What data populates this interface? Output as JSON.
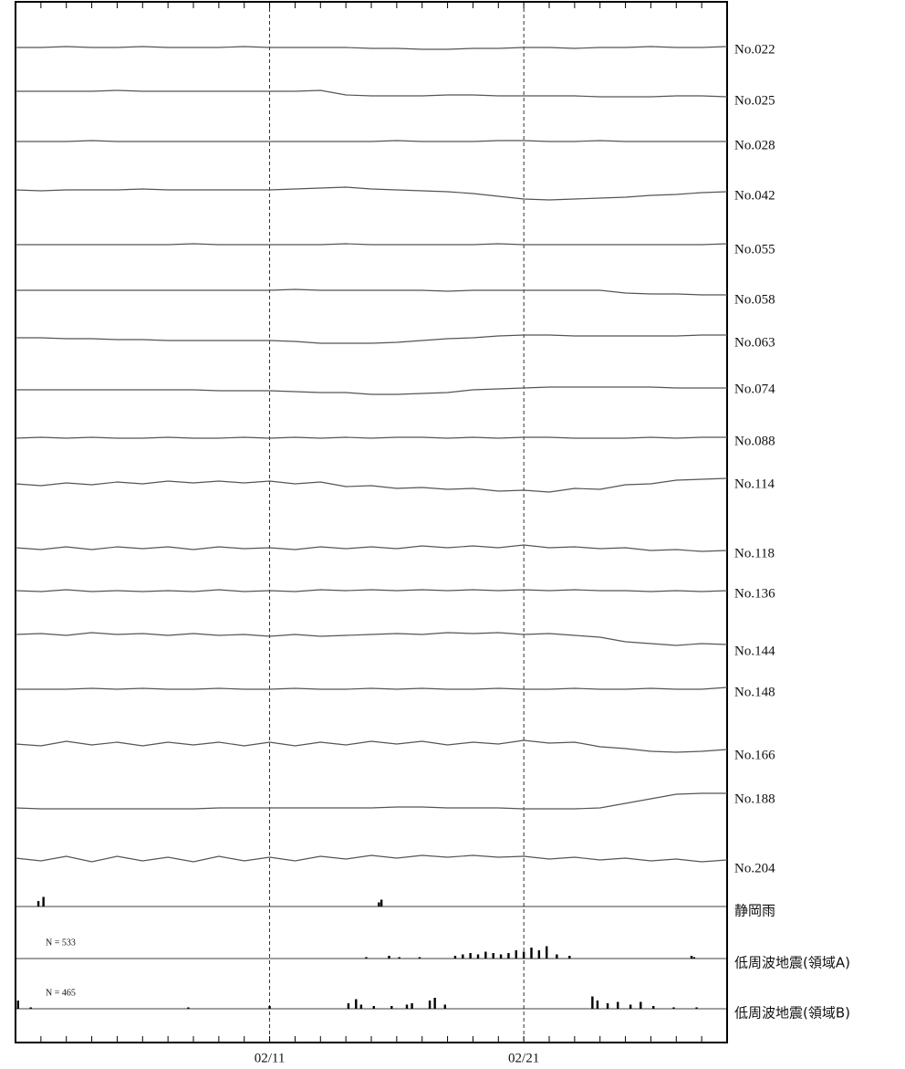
{
  "chart_data": {
    "type": "strip",
    "xlim": [
      0,
      28
    ],
    "xticks": [
      {
        "value": 10,
        "label": "02/11"
      },
      {
        "value": 20,
        "label": "02/21"
      }
    ],
    "ylim": [
      -20,
      20
    ],
    "color": "#555555",
    "series": [
      {
        "name": "No.022",
        "values": [
          0,
          0,
          1,
          0,
          0,
          1,
          0,
          0,
          0,
          1,
          0,
          0,
          0,
          0,
          -1,
          -1,
          -2,
          -2,
          -1,
          -1,
          0,
          0,
          -1,
          0,
          0,
          1,
          0,
          0,
          1
        ]
      },
      {
        "name": "No.025",
        "values": [
          0,
          0,
          0,
          0,
          1,
          0,
          0,
          0,
          0,
          0,
          0,
          0,
          1,
          -4,
          -5,
          -5,
          -5,
          -4,
          -4,
          -5,
          -5,
          -5,
          -5,
          -6,
          -6,
          -6,
          -5,
          -5,
          -6
        ]
      },
      {
        "name": "No.028",
        "values": [
          0,
          0,
          0,
          1,
          0,
          0,
          0,
          0,
          0,
          0,
          0,
          0,
          0,
          0,
          0,
          1,
          0,
          0,
          0,
          1,
          1,
          0,
          0,
          1,
          0,
          0,
          0,
          0,
          0
        ]
      },
      {
        "name": "No.042",
        "values": [
          0,
          -1,
          0,
          0,
          0,
          1,
          0,
          0,
          0,
          0,
          0,
          1,
          2,
          3,
          1,
          0,
          -1,
          -2,
          -4,
          -7,
          -10,
          -11,
          -10,
          -9,
          -8,
          -6,
          -5,
          -3,
          -2
        ]
      },
      {
        "name": "No.055",
        "values": [
          0,
          0,
          0,
          0,
          0,
          0,
          0,
          1,
          0,
          0,
          0,
          0,
          0,
          1,
          0,
          0,
          0,
          0,
          0,
          1,
          0,
          0,
          0,
          0,
          0,
          0,
          0,
          0,
          1
        ]
      },
      {
        "name": "No.058",
        "values": [
          0,
          0,
          0,
          0,
          0,
          0,
          0,
          0,
          0,
          0,
          0,
          1,
          0,
          0,
          0,
          0,
          0,
          -1,
          0,
          0,
          0,
          0,
          0,
          0,
          -3,
          -4,
          -4,
          -5,
          -5
        ]
      },
      {
        "name": "No.063",
        "values": [
          0,
          0,
          -1,
          -1,
          -2,
          -2,
          -3,
          -3,
          -3,
          -3,
          -3,
          -4,
          -6,
          -6,
          -6,
          -5,
          -3,
          -1,
          0,
          2,
          3,
          3,
          2,
          2,
          2,
          2,
          2,
          3,
          3
        ]
      },
      {
        "name": "No.074",
        "values": [
          0,
          0,
          0,
          0,
          0,
          0,
          0,
          0,
          -1,
          -1,
          -1,
          -2,
          -3,
          -3,
          -5,
          -5,
          -4,
          -3,
          0,
          1,
          2,
          3,
          3,
          3,
          3,
          3,
          2,
          2,
          2
        ]
      },
      {
        "name": "No.088",
        "values": [
          0,
          1,
          0,
          1,
          0,
          0,
          1,
          0,
          0,
          1,
          0,
          1,
          0,
          1,
          0,
          1,
          1,
          0,
          1,
          0,
          1,
          1,
          0,
          0,
          0,
          1,
          0,
          1,
          1
        ]
      },
      {
        "name": "No.114",
        "values": [
          0,
          -2,
          1,
          -1,
          2,
          0,
          3,
          1,
          3,
          1,
          3,
          0,
          2,
          -3,
          -2,
          -5,
          -4,
          -6,
          -5,
          -8,
          -7,
          -9,
          -5,
          -6,
          -1,
          0,
          4,
          5,
          6
        ]
      },
      {
        "name": "No.118",
        "values": [
          0,
          -2,
          1,
          -2,
          1,
          -1,
          1,
          -2,
          1,
          -1,
          0,
          -2,
          1,
          -1,
          1,
          -1,
          2,
          0,
          2,
          0,
          3,
          0,
          1,
          -1,
          0,
          -3,
          -2,
          -4,
          -3
        ]
      },
      {
        "name": "No.136",
        "values": [
          0,
          -1,
          1,
          -1,
          0,
          -1,
          0,
          -1,
          1,
          -1,
          0,
          -1,
          1,
          0,
          1,
          0,
          1,
          0,
          1,
          0,
          1,
          0,
          1,
          0,
          0,
          -1,
          0,
          -1,
          0
        ]
      },
      {
        "name": "No.144",
        "values": [
          0,
          1,
          -1,
          2,
          0,
          1,
          -1,
          1,
          -1,
          0,
          -2,
          0,
          -2,
          -1,
          0,
          1,
          0,
          2,
          1,
          2,
          0,
          1,
          -1,
          -3,
          -8,
          -10,
          -12,
          -10,
          -11
        ]
      },
      {
        "name": "No.148",
        "values": [
          0,
          0,
          0,
          1,
          0,
          1,
          0,
          0,
          1,
          0,
          0,
          1,
          0,
          0,
          1,
          0,
          1,
          0,
          0,
          1,
          0,
          0,
          1,
          0,
          0,
          1,
          0,
          0,
          2
        ]
      },
      {
        "name": "No.166",
        "values": [
          0,
          -2,
          3,
          -1,
          2,
          -2,
          2,
          -1,
          2,
          -2,
          2,
          -2,
          2,
          -1,
          3,
          0,
          3,
          -1,
          2,
          0,
          4,
          1,
          2,
          -3,
          -5,
          -8,
          -9,
          -8,
          -6
        ]
      },
      {
        "name": "No.188",
        "values": [
          0,
          -1,
          -1,
          -1,
          -1,
          -1,
          -1,
          -1,
          0,
          0,
          0,
          0,
          0,
          0,
          0,
          1,
          1,
          0,
          0,
          0,
          -1,
          -1,
          -1,
          0,
          5,
          10,
          15,
          16,
          16
        ]
      },
      {
        "name": "No.204",
        "values": [
          0,
          -3,
          2,
          -4,
          2,
          -3,
          1,
          -4,
          2,
          -3,
          1,
          -3,
          2,
          -1,
          3,
          0,
          3,
          1,
          3,
          1,
          2,
          -1,
          1,
          -2,
          0,
          -3,
          -1,
          -4,
          -2
        ]
      }
    ],
    "bars": [
      {
        "name": "静岡雨",
        "x": [
          0.9,
          1.1,
          14.3,
          14.4
        ],
        "values": [
          4,
          7,
          3,
          5
        ]
      },
      {
        "name": "低周波地震(領域A)",
        "annotation": "N =   533",
        "x": [
          13.8,
          14.7,
          15.1,
          15.9,
          17.3,
          17.6,
          17.9,
          18.2,
          18.5,
          18.8,
          19.1,
          19.4,
          19.7,
          20.0,
          20.3,
          20.6,
          20.9,
          21.3,
          21.8,
          26.6,
          26.7
        ],
        "values": [
          1,
          2,
          1,
          1,
          2,
          3,
          4,
          3,
          5,
          4,
          3,
          4,
          6,
          5,
          8,
          6,
          9,
          3,
          2,
          2,
          1
        ]
      },
      {
        "name": "低周波地震(領域B)",
        "annotation": "N =   465",
        "x": [
          0.1,
          0.6,
          6.8,
          10.0,
          13.1,
          13.4,
          13.6,
          14.1,
          14.8,
          15.4,
          15.6,
          16.3,
          16.5,
          16.9,
          22.7,
          22.9,
          23.3,
          23.7,
          24.2,
          24.6,
          25.1,
          25.9,
          26.8
        ],
        "values": [
          6,
          1,
          1,
          2,
          4,
          7,
          3,
          2,
          2,
          3,
          4,
          6,
          8,
          3,
          9,
          6,
          4,
          5,
          3,
          5,
          2,
          1,
          1
        ]
      }
    ]
  }
}
